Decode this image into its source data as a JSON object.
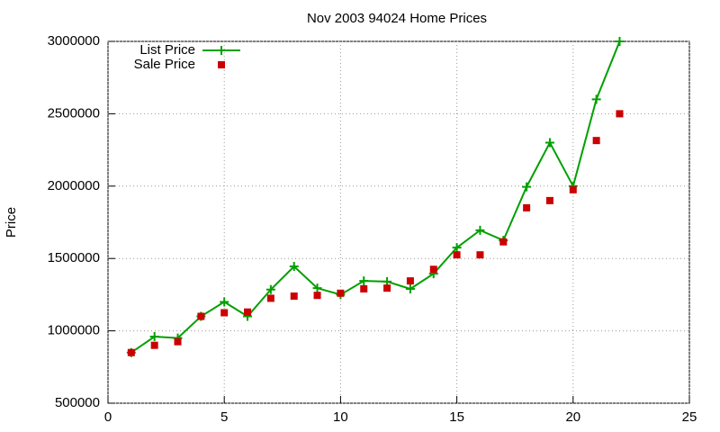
{
  "chart_data": {
    "type": "line",
    "title": "Nov 2003 94024 Home Prices",
    "y_label": "Price",
    "x": [
      1,
      2,
      3,
      4,
      5,
      6,
      7,
      8,
      9,
      10,
      11,
      12,
      13,
      14,
      15,
      16,
      17,
      18,
      19,
      20,
      21,
      22
    ],
    "series": [
      {
        "name": "List Price",
        "color": "#00a000",
        "style": "linespoints",
        "values": [
          850000,
          960000,
          950000,
          1100000,
          1200000,
          1100000,
          1285000,
          1445000,
          1295000,
          1250000,
          1345000,
          1340000,
          1290000,
          1395000,
          1575000,
          1695000,
          1625000,
          1995000,
          2300000,
          2000000,
          2600000,
          3000000
        ]
      },
      {
        "name": "Sale Price",
        "color": "#cc0000",
        "style": "points",
        "values": [
          850000,
          900000,
          925000,
          1100000,
          1125000,
          1130000,
          1225000,
          1240000,
          1245000,
          1260000,
          1290000,
          1295000,
          1345000,
          1425000,
          1525000,
          1525000,
          1615000,
          1850000,
          1900000,
          1975000,
          2315000,
          2500000
        ]
      }
    ],
    "xlim": [
      0,
      25
    ],
    "xticks": [
      0,
      5,
      10,
      15,
      20,
      25
    ],
    "ylim": [
      500000,
      3000000
    ],
    "yticks": [
      500000,
      1000000,
      1500000,
      2000000,
      2500000,
      3000000
    ],
    "grid": true,
    "legend": "top-left"
  }
}
